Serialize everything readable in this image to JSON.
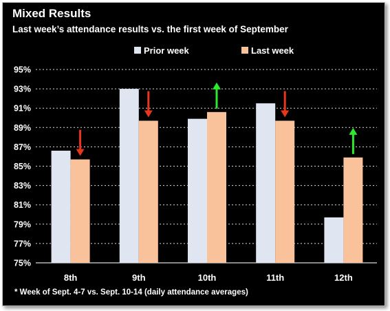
{
  "title": "Mixed Results",
  "subtitle": "Last week’s attendance results vs. the first week of September",
  "footnote": "* Week of Sept. 4-7 vs. Sept. 10-14 (daily attendance averages)",
  "colors": {
    "background": "#000000",
    "prior_week": "#dfe6f1",
    "last_week": "#fac29a",
    "arrow_down": "#e8361c",
    "arrow_up": "#2ee82e",
    "gridline": "#ffffff",
    "text": "#ffffff"
  },
  "chart_data": {
    "type": "bar",
    "categories": [
      "8th",
      "9th",
      "10th",
      "11th",
      "12th"
    ],
    "series": [
      {
        "name": "Prior week",
        "values": [
          86.6,
          93.0,
          89.9,
          91.5,
          79.7
        ]
      },
      {
        "name": "Last week",
        "values": [
          85.7,
          89.7,
          90.6,
          89.7,
          85.9
        ]
      }
    ],
    "changes": [
      "down",
      "down",
      "up",
      "down",
      "up"
    ],
    "ylim": [
      75,
      95
    ],
    "yticks": [
      "75%",
      "77%",
      "79%",
      "81%",
      "83%",
      "85%",
      "87%",
      "89%",
      "91%",
      "93%",
      "95%"
    ],
    "ytick_values": [
      75,
      77,
      79,
      81,
      83,
      85,
      87,
      89,
      91,
      93,
      95
    ],
    "grid": true,
    "legend_position": "top-center"
  }
}
